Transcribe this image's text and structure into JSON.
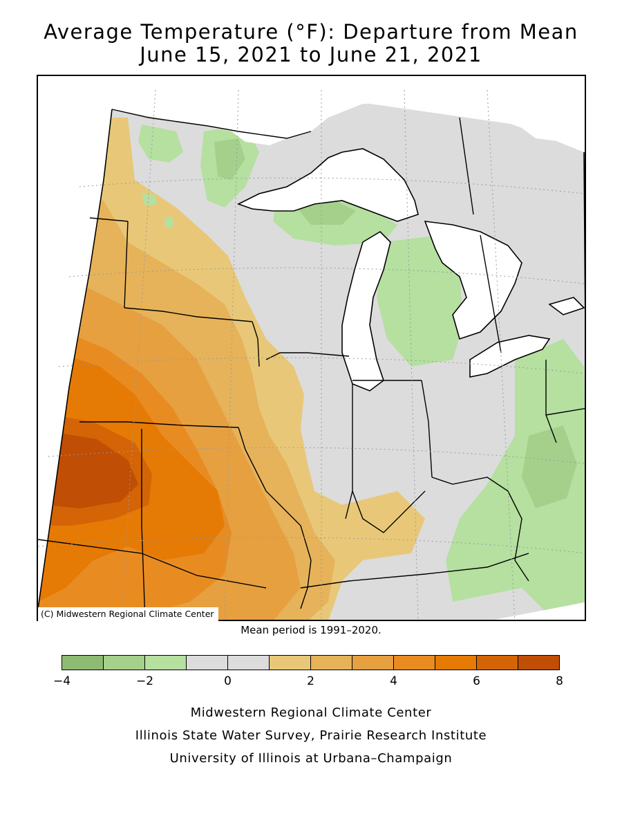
{
  "title": {
    "line1": "Average Temperature (°F): Departure from Mean",
    "line2": "June 15, 2021 to June 21, 2021"
  },
  "map": {
    "copyright": "(C) Midwestern Regional Climate Center",
    "mean_period": "Mean period is 1991–2020."
  },
  "legend": {
    "bins": [
      {
        "from": -4,
        "to": -3,
        "color": "#8ebb73"
      },
      {
        "from": -3,
        "to": -2,
        "color": "#a4d08b"
      },
      {
        "from": -2,
        "to": -1,
        "color": "#b5e0a0"
      },
      {
        "from": -1,
        "to": 0,
        "color": "#dcdcdc"
      },
      {
        "from": 0,
        "to": 1,
        "color": "#dcdcdc"
      },
      {
        "from": 1,
        "to": 2,
        "color": "#e8c878"
      },
      {
        "from": 2,
        "to": 3,
        "color": "#e6b35a"
      },
      {
        "from": 3,
        "to": 4,
        "color": "#e6a040"
      },
      {
        "from": 4,
        "to": 5,
        "color": "#e88c22"
      },
      {
        "from": 5,
        "to": 6,
        "color": "#e57a05"
      },
      {
        "from": 6,
        "to": 7,
        "color": "#d46406"
      },
      {
        "from": 7,
        "to": 8,
        "color": "#c04e04"
      }
    ],
    "tick_labels": [
      "−4",
      "−2",
      "0",
      "2",
      "4",
      "6",
      "8"
    ]
  },
  "credits": {
    "line1": "Midwestern Regional Climate Center",
    "line2": "Illinois State Water Survey, Prairie Research Institute",
    "line3": "University of Illinois at Urbana–Champaign"
  }
}
